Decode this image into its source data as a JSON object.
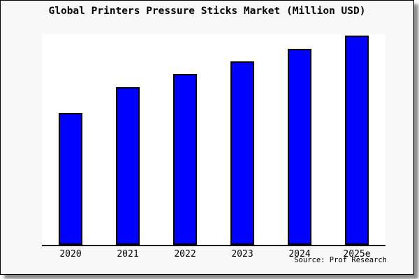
{
  "window": {
    "card_background": "#f8f8f8",
    "plot_background": "#ffffff",
    "border_color": "#000000"
  },
  "chart_data": {
    "type": "bar",
    "title": "Global Printers Pressure Sticks Market (Million USD)",
    "categories": [
      "2020",
      "2021",
      "2022",
      "2023",
      "2024",
      "2025e"
    ],
    "values": [
      62.9,
      75.3,
      81.7,
      87.8,
      93.8,
      100
    ],
    "value_note": "No y-axis ticks or labels are shown in the image; values are bar heights normalized to 2025e = 100",
    "xlabel": "",
    "ylabel": "",
    "ylim": [
      0,
      101
    ],
    "grid": false,
    "legend": false,
    "y_axis_hidden": true,
    "bar_color": "#0000ff",
    "bar_border_color": "#000000",
    "axis_line_color": "#000000"
  },
  "footer": {
    "source_label": "Source: Prof Research"
  }
}
